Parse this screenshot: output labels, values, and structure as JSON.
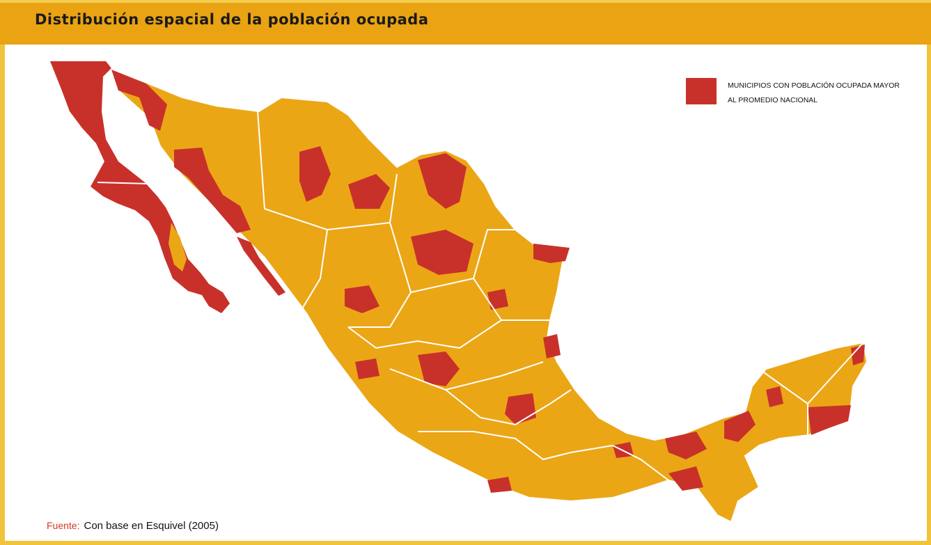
{
  "header": {
    "title": "Distribución espacial de la población ocupada"
  },
  "legend": {
    "label": "MUNICIPIOS CON POBLACIÓN OCUPADA MAYOR AL PROMEDIO NACIONAL",
    "swatch_color": "#c8312a"
  },
  "map": {
    "base_color": "#eba616",
    "highlight_color": "#c8312a",
    "border_color": "#ffffff"
  },
  "source": {
    "label": "Fuente:",
    "text": "Con base en Esquivel (2005)"
  }
}
